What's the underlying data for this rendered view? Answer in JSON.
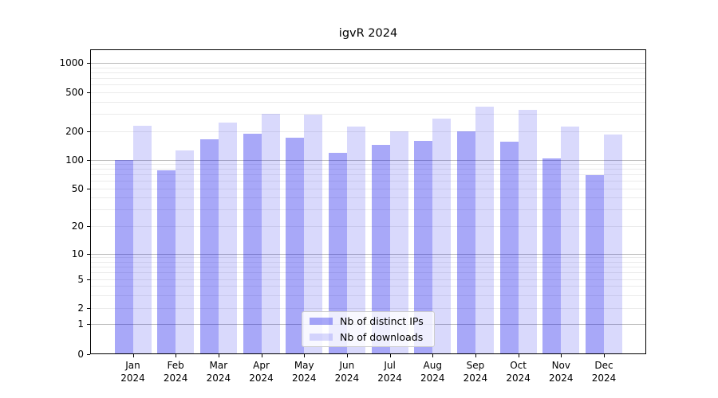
{
  "chart_data": {
    "type": "bar",
    "title": "igvR 2024",
    "categories": [
      {
        "month": "Jan",
        "year": "2024"
      },
      {
        "month": "Feb",
        "year": "2024"
      },
      {
        "month": "Mar",
        "year": "2024"
      },
      {
        "month": "Apr",
        "year": "2024"
      },
      {
        "month": "May",
        "year": "2024"
      },
      {
        "month": "Jun",
        "year": "2024"
      },
      {
        "month": "Jul",
        "year": "2024"
      },
      {
        "month": "Aug",
        "year": "2024"
      },
      {
        "month": "Sep",
        "year": "2024"
      },
      {
        "month": "Oct",
        "year": "2024"
      },
      {
        "month": "Nov",
        "year": "2024"
      },
      {
        "month": "Dec",
        "year": "2024"
      }
    ],
    "series": [
      {
        "name": "Nb of distinct IPs",
        "color": "#0000eb",
        "alpha": 0.34,
        "rendered_color": "#a9a9f7",
        "values": [
          100,
          77,
          163,
          187,
          170,
          118,
          143,
          158,
          199,
          153,
          102,
          69
        ]
      },
      {
        "name": "Nb of downloads",
        "color": "#0000eb",
        "alpha": 0.15,
        "rendered_color": "#dadafb",
        "values": [
          226,
          124,
          244,
          303,
          297,
          221,
          200,
          268,
          353,
          332,
          224,
          185
        ]
      }
    ],
    "yscale": "symlog",
    "yticks": [
      0,
      1,
      2,
      5,
      10,
      20,
      50,
      100,
      200,
      500,
      1000
    ],
    "ylim": [
      0,
      1300
    ],
    "xlabel": "",
    "ylabel": "",
    "grid": "on",
    "legend_position": "lower center"
  }
}
